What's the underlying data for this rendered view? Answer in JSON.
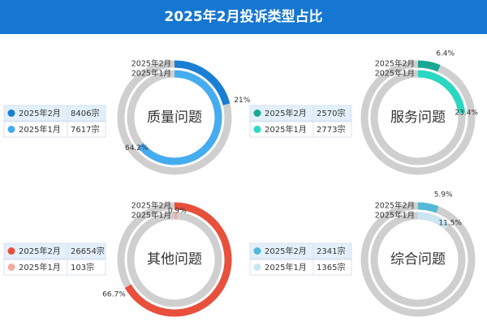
{
  "title": "2025年2月投诉类型占比",
  "chart_data": [
    {
      "type": "radial_bar",
      "title": "质量问题",
      "categories": [
        "2025年2月",
        "2025年1月"
      ],
      "values": [
        21,
        64.2
      ],
      "value_labels": [
        "21%",
        "64.2%"
      ],
      "ylim": [
        0,
        100
      ],
      "colors": [
        "#1a7fd4",
        "#46acf0"
      ],
      "counts": [
        "8406宗",
        "7617宗"
      ]
    },
    {
      "type": "radial_bar",
      "title": "服务问题",
      "categories": [
        "2025年2月",
        "2025年1月"
      ],
      "values": [
        6.4,
        23.4
      ],
      "value_labels": [
        "6.4%",
        "23.4%"
      ],
      "ylim": [
        0,
        100
      ],
      "colors": [
        "#1aa892",
        "#2ad8c2"
      ],
      "counts": [
        "2570宗",
        "2773宗"
      ]
    },
    {
      "type": "radial_bar",
      "title": "其他问题",
      "categories": [
        "2025年2月",
        "2025年1月"
      ],
      "values": [
        66.7,
        0.9
      ],
      "value_labels": [
        "66.7%",
        "0.9%"
      ],
      "ylim": [
        0,
        100
      ],
      "colors": [
        "#e8503c",
        "#f4aca2"
      ],
      "counts": [
        "26654宗",
        "103宗"
      ]
    },
    {
      "type": "radial_bar",
      "title": "综合问题",
      "categories": [
        "2025年2月",
        "2025年1月"
      ],
      "values": [
        5.9,
        11.5
      ],
      "value_labels": [
        "5.9%",
        "11.5%"
      ],
      "ylim": [
        0,
        100
      ],
      "colors": [
        "#52b8d8",
        "#cbe5f2"
      ],
      "counts": [
        "2341宗",
        "1365宗"
      ]
    }
  ]
}
